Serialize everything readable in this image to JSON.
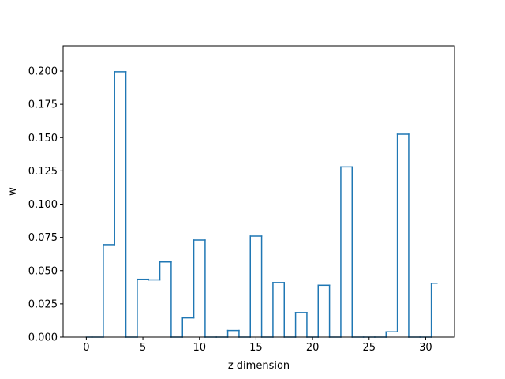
{
  "chart_data": {
    "type": "step",
    "title": "",
    "xlabel": "z dimension",
    "ylabel": "w",
    "xlim": [
      -2.05,
      32.55
    ],
    "ylim": [
      0,
      0.219
    ],
    "xticks": [
      0,
      5,
      10,
      15,
      20,
      25,
      30
    ],
    "yticks": [
      0.0,
      0.025,
      0.05,
      0.075,
      0.1,
      0.125,
      0.15,
      0.175,
      0.2
    ],
    "ytick_labels": [
      "0.000",
      "0.025",
      "0.050",
      "0.075",
      "0.100",
      "0.125",
      "0.150",
      "0.175",
      "0.200"
    ],
    "x": [
      0,
      1,
      2,
      3,
      4,
      5,
      6,
      7,
      8,
      9,
      10,
      11,
      12,
      13,
      14,
      15,
      16,
      17,
      18,
      19,
      20,
      21,
      22,
      23,
      24,
      25,
      26,
      27,
      28,
      29,
      30,
      31
    ],
    "values": [
      0.0,
      0.0,
      0.0695,
      0.1995,
      0.0,
      0.0435,
      0.043,
      0.0565,
      0.0,
      0.0145,
      0.073,
      0.0,
      0.0,
      0.005,
      0.0,
      0.076,
      0.0,
      0.041,
      0.0,
      0.0185,
      0.0,
      0.039,
      0.0,
      0.128,
      0.0,
      0.0,
      0.0,
      0.004,
      0.1525,
      0.0,
      0.0,
      0.0405
    ],
    "line_color": "#1f77b4",
    "grid": false
  }
}
